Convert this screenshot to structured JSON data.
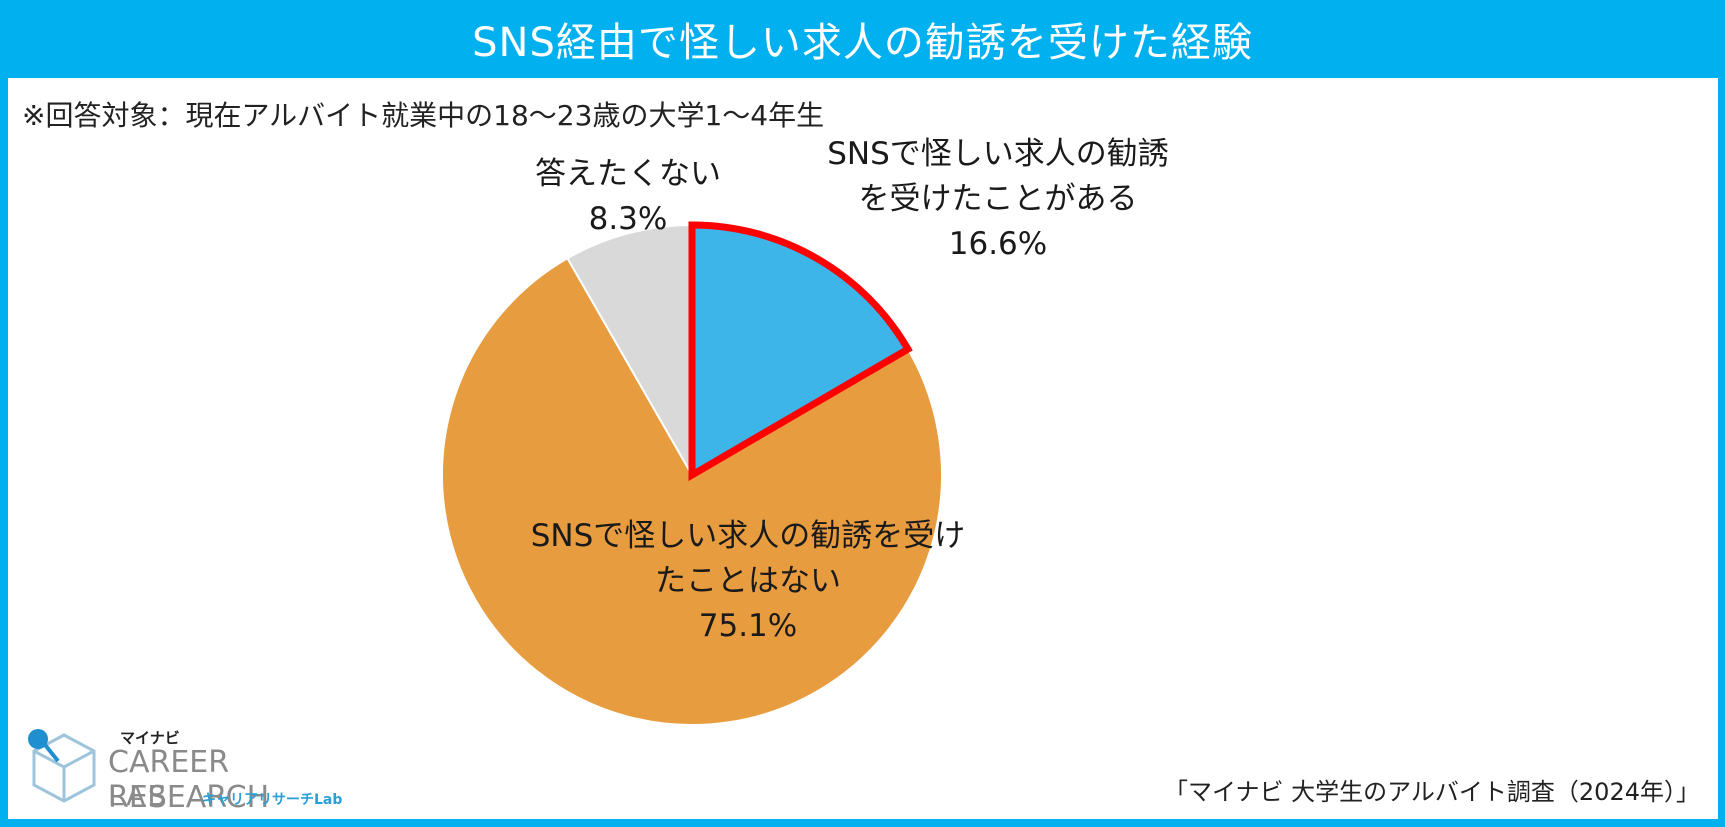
{
  "header": {
    "title": "SNS経由で怪しい求人の勧誘を受けた経験"
  },
  "note": "※回答対象：現在アルバイト就業中の18～23歳の大学1～4年生",
  "chart_data": {
    "type": "pie",
    "title": "SNS経由で怪しい求人の勧誘を受けた経験",
    "slices": [
      {
        "label_lines": [
          "SNSで怪しい求人の勧誘",
          "を受けたことがある"
        ],
        "value": 16.6,
        "value_text": "16.6%",
        "color": "#3db5e8",
        "highlight": true
      },
      {
        "label_lines": [
          "SNSで怪しい求人の勧誘を受け",
          "たことはない"
        ],
        "value": 75.1,
        "value_text": "75.1%",
        "color": "#e89c40",
        "highlight": false
      },
      {
        "label_lines": [
          "答えたくない"
        ],
        "value": 8.3,
        "value_text": "8.3%",
        "color": "#d9d9d9",
        "highlight": false
      }
    ],
    "highlight_color": "#ff0000"
  },
  "logo": {
    "small": "マイナビ",
    "main": "CAREER RESEARCH",
    "lab": "LAB",
    "kana": "キャリアリサーチLab"
  },
  "source": "「マイナビ 大学生のアルバイト調査（2024年）」"
}
